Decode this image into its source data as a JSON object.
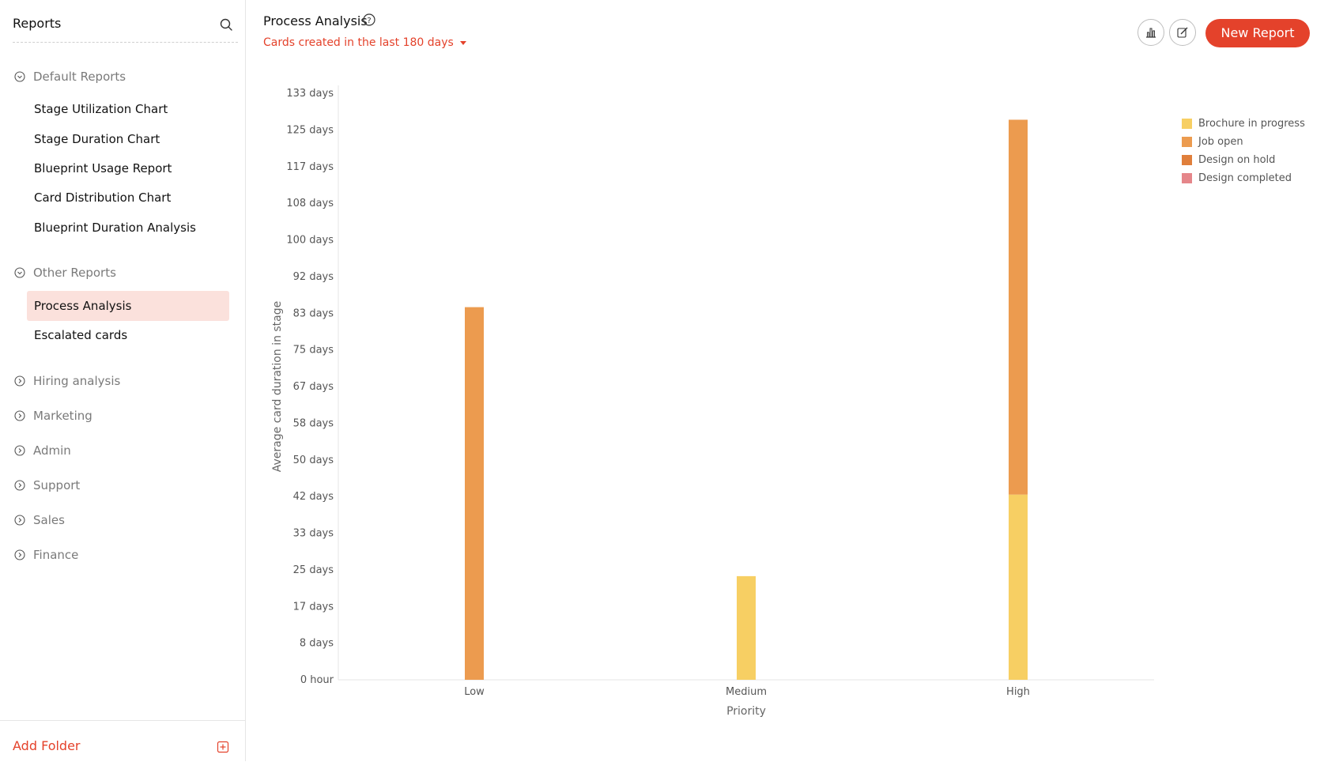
{
  "sidebar": {
    "title": "Reports",
    "groups": [
      {
        "label": "Default Reports",
        "items": [
          "Stage Utilization Chart",
          "Stage Duration Chart",
          "Blueprint Usage Report",
          "Card Distribution Chart",
          "Blueprint Duration Analysis"
        ]
      },
      {
        "label": "Other Reports",
        "items": [
          "Process Analysis",
          "Escalated cards"
        ],
        "active": "Process Analysis"
      }
    ],
    "folders": [
      "Hiring analysis",
      "Marketing",
      "Admin",
      "Support",
      "Sales",
      "Finance"
    ],
    "add_folder": "Add Folder"
  },
  "header": {
    "title": "Process Analysis",
    "filter": "Cards created in the last 180 days",
    "new_report": "New Report"
  },
  "colors": {
    "accent": "#e4422b",
    "brochure_in_progress": "#f7cf63",
    "job_open": "#ec9b4f",
    "design_on_hold": "#e07f3b",
    "design_completed": "#e5868a"
  },
  "chart_data": {
    "type": "bar",
    "stacked": true,
    "xlabel": "Priority",
    "ylabel": "Average card duration in stage",
    "categories": [
      "Low",
      "Medium",
      "High"
    ],
    "y_ticks": [
      "0 hour",
      "8 days",
      "17 days",
      "25 days",
      "33 days",
      "42 days",
      "50 days",
      "58 days",
      "67 days",
      "75 days",
      "83 days",
      "92 days",
      "100 days",
      "108 days",
      "117 days",
      "125 days",
      "133 days"
    ],
    "ylim": [
      0,
      133
    ],
    "legend_position": "top-right",
    "series": [
      {
        "name": "Brochure in progress",
        "color": "#f7cf63",
        "values": [
          0,
          23.5,
          42
        ]
      },
      {
        "name": "Job open",
        "color": "#ec9b4f",
        "values": [
          84.5,
          0,
          85
        ]
      },
      {
        "name": "Design on hold",
        "color": "#e07f3b",
        "values": [
          0,
          0,
          0
        ]
      },
      {
        "name": "Design completed",
        "color": "#e5868a",
        "values": [
          0,
          0,
          0
        ]
      }
    ]
  }
}
